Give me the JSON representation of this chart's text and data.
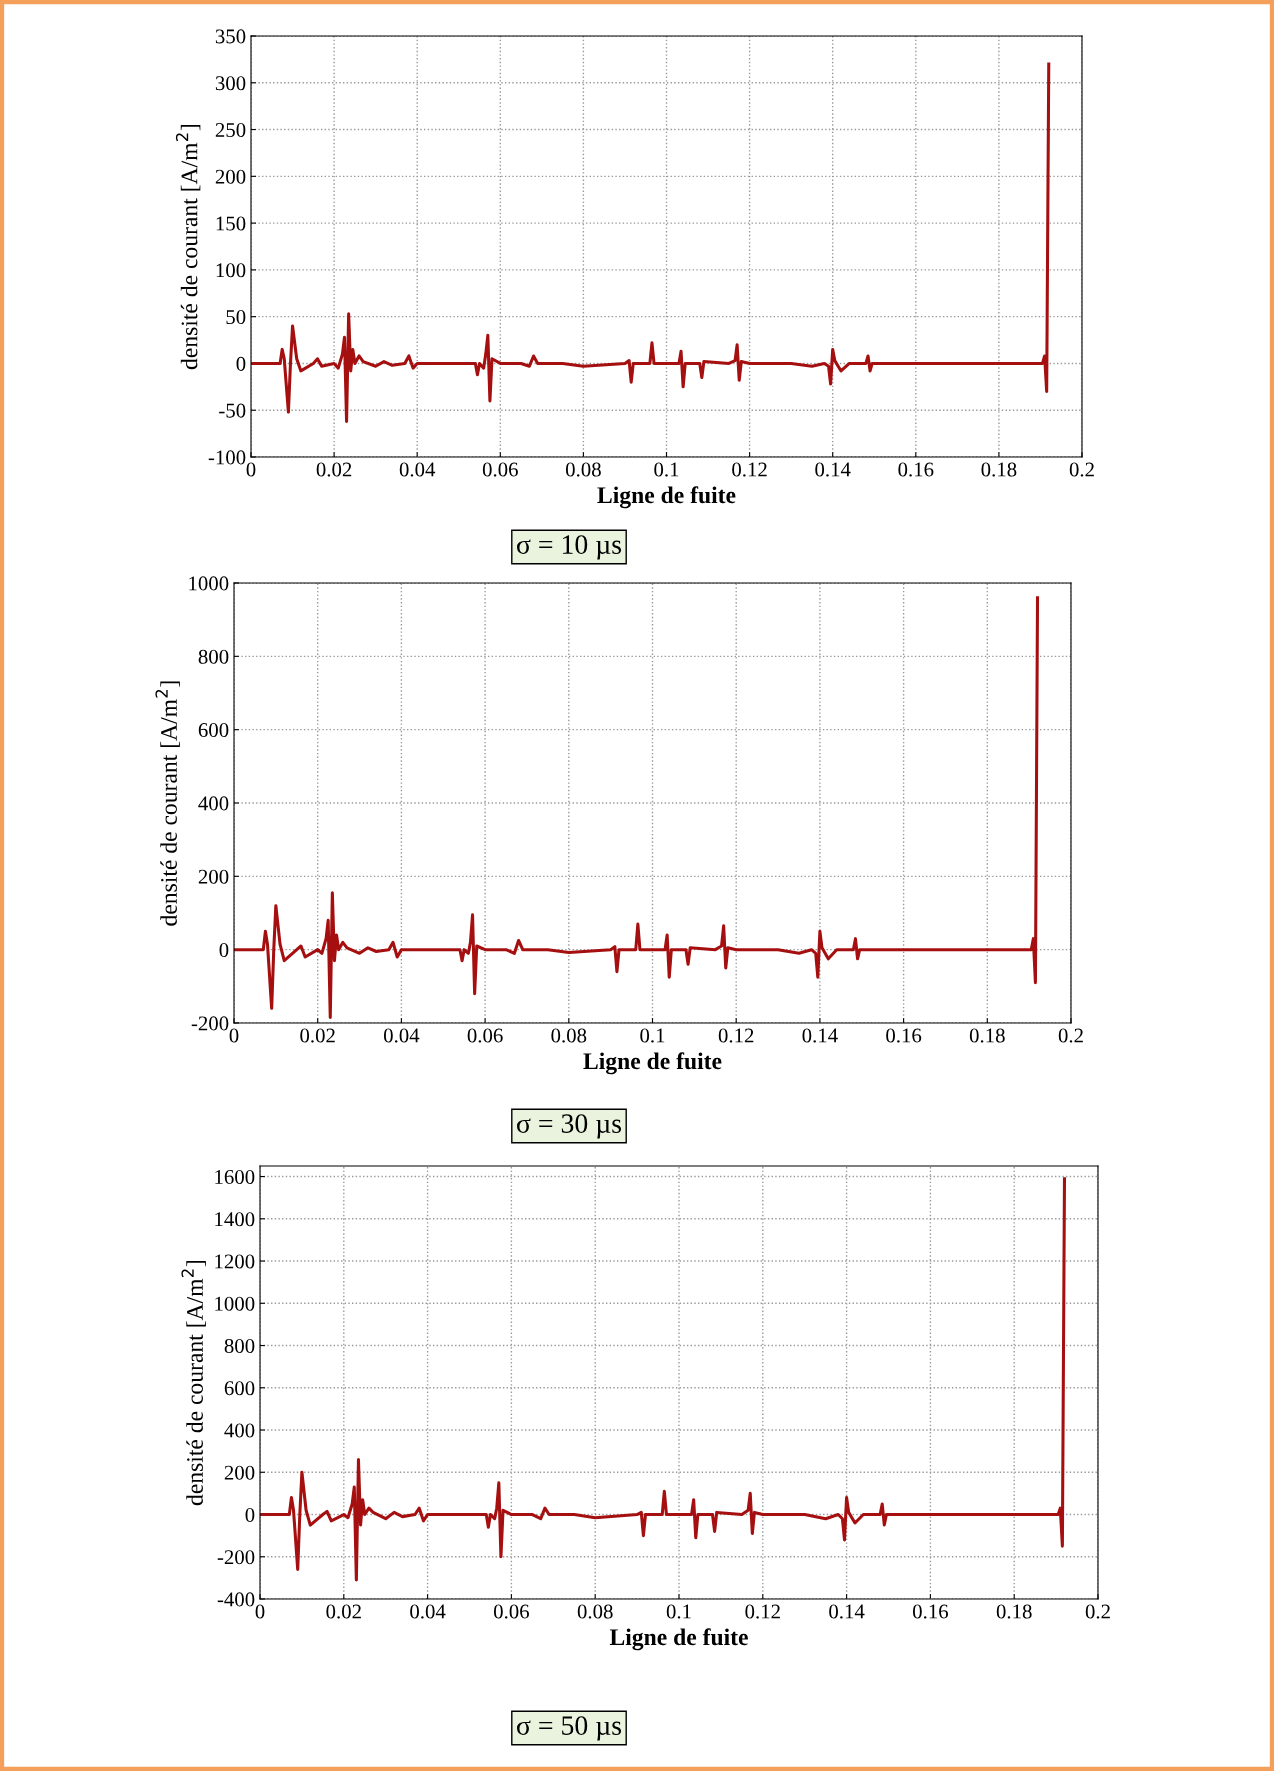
{
  "chart_data": [
    {
      "type": "line",
      "xlabel": "Ligne de fuite",
      "ylabel": "densité de courant [A/m$^{2}$]",
      "annotations": [
        "σ = 10 µs"
      ],
      "grid": true,
      "line_style": "solid",
      "marker": "none",
      "xlim": [
        0,
        0.2
      ],
      "xticks": [
        0,
        0.02,
        0.04,
        0.06,
        0.08,
        0.1,
        0.12,
        0.14,
        0.16,
        0.18,
        0.2
      ],
      "ylim": [
        -100,
        350
      ],
      "yticks": [
        -100,
        -50,
        0,
        50,
        100,
        150,
        200,
        250,
        300,
        350
      ],
      "series": [
        {
          "color": "#a50f0f",
          "x": [
            0,
            0.007,
            0.0075,
            0.008,
            0.009,
            0.0095,
            0.01,
            0.011,
            0.012,
            0.015,
            0.016,
            0.017,
            0.02,
            0.021,
            0.022,
            0.0225,
            0.023,
            0.0235,
            0.024,
            0.0245,
            0.025,
            0.026,
            0.027,
            0.03,
            0.032,
            0.034,
            0.037,
            0.038,
            0.039,
            0.04,
            0.05,
            0.054,
            0.0545,
            0.055,
            0.056,
            0.0565,
            0.057,
            0.0575,
            0.058,
            0.06,
            0.065,
            0.067,
            0.068,
            0.069,
            0.075,
            0.08,
            0.09,
            0.091,
            0.0915,
            0.092,
            0.096,
            0.0965,
            0.097,
            0.098,
            0.103,
            0.1035,
            0.104,
            0.1045,
            0.105,
            0.108,
            0.1085,
            0.109,
            0.115,
            0.1165,
            0.117,
            0.1175,
            0.118,
            0.12,
            0.13,
            0.135,
            0.138,
            0.139,
            0.1395,
            0.14,
            0.1405,
            0.142,
            0.144,
            0.146,
            0.148,
            0.1485,
            0.149,
            0.1495,
            0.15,
            0.152,
            0.19,
            0.1905,
            0.191,
            0.1915,
            0.192
          ],
          "values": [
            0,
            0,
            15,
            5,
            -52,
            0,
            40,
            5,
            -8,
            0,
            5,
            -3,
            0,
            -5,
            10,
            28,
            -62,
            53,
            -8,
            15,
            0,
            8,
            2,
            -3,
            2,
            -2,
            0,
            8,
            -5,
            0,
            0,
            0,
            -12,
            0,
            -5,
            10,
            30,
            -40,
            5,
            0,
            0,
            -3,
            8,
            0,
            0,
            -3,
            0,
            3,
            -20,
            0,
            0,
            22,
            0,
            0,
            0,
            13,
            -25,
            0,
            0,
            0,
            -15,
            2,
            0,
            3,
            20,
            -18,
            2,
            0,
            0,
            -3,
            0,
            -3,
            -22,
            15,
            3,
            -8,
            0,
            0,
            0,
            8,
            -8,
            0,
            0,
            0,
            0,
            0,
            8,
            -30,
            320
          ]
        }
      ]
    },
    {
      "type": "line",
      "xlabel": "Ligne de fuite",
      "ylabel": "densité de courant [A/m$^{2}$]",
      "annotations": [
        "σ = 30 µs"
      ],
      "grid": true,
      "line_style": "solid",
      "marker": "none",
      "xlim": [
        0,
        0.2
      ],
      "xticks": [
        0,
        0.02,
        0.04,
        0.06,
        0.08,
        0.1,
        0.12,
        0.14,
        0.16,
        0.18,
        0.2
      ],
      "ylim": [
        -200,
        1000
      ],
      "yticks": [
        -200,
        0,
        200,
        400,
        600,
        800,
        1000
      ],
      "series": [
        {
          "color": "#a50f0f",
          "x": [
            0,
            0.007,
            0.0075,
            0.008,
            0.009,
            0.0095,
            0.01,
            0.011,
            0.012,
            0.015,
            0.016,
            0.017,
            0.02,
            0.021,
            0.022,
            0.0225,
            0.023,
            0.0235,
            0.024,
            0.0245,
            0.025,
            0.026,
            0.027,
            0.03,
            0.032,
            0.034,
            0.037,
            0.038,
            0.039,
            0.04,
            0.05,
            0.054,
            0.0545,
            0.055,
            0.056,
            0.0565,
            0.057,
            0.0575,
            0.058,
            0.06,
            0.065,
            0.067,
            0.068,
            0.069,
            0.075,
            0.08,
            0.09,
            0.091,
            0.0915,
            0.092,
            0.096,
            0.0965,
            0.097,
            0.098,
            0.103,
            0.1035,
            0.104,
            0.1045,
            0.105,
            0.108,
            0.1085,
            0.109,
            0.115,
            0.1165,
            0.117,
            0.1175,
            0.118,
            0.12,
            0.13,
            0.135,
            0.138,
            0.139,
            0.1395,
            0.14,
            0.1405,
            0.142,
            0.144,
            0.146,
            0.148,
            0.1485,
            0.149,
            0.1495,
            0.15,
            0.152,
            0.19,
            0.1905,
            0.191,
            0.1915,
            0.192
          ],
          "values": [
            0,
            0,
            50,
            15,
            -160,
            0,
            120,
            15,
            -30,
            0,
            10,
            -20,
            0,
            -10,
            30,
            80,
            -185,
            155,
            -30,
            40,
            0,
            20,
            5,
            -10,
            5,
            -5,
            0,
            20,
            -20,
            0,
            0,
            0,
            -30,
            0,
            -10,
            20,
            95,
            -120,
            10,
            0,
            0,
            -10,
            25,
            0,
            0,
            -8,
            0,
            8,
            -60,
            0,
            0,
            70,
            0,
            0,
            0,
            40,
            -75,
            0,
            0,
            0,
            -40,
            5,
            0,
            10,
            65,
            -50,
            5,
            0,
            0,
            -10,
            0,
            -10,
            -75,
            50,
            5,
            -25,
            0,
            0,
            0,
            30,
            -25,
            0,
            0,
            0,
            0,
            0,
            30,
            -90,
            960
          ]
        }
      ]
    },
    {
      "type": "line",
      "xlabel": "Ligne de fuite",
      "ylabel": "densité de courant [A/m$^{2}$]",
      "annotations": [
        "σ = 50 µs"
      ],
      "grid": true,
      "line_style": "solid",
      "marker": "none",
      "xlim": [
        0,
        0.2
      ],
      "xticks": [
        0,
        0.02,
        0.04,
        0.06,
        0.08,
        0.1,
        0.12,
        0.14,
        0.16,
        0.18,
        0.2
      ],
      "ylim": [
        -400,
        1650
      ],
      "yticks": [
        -400,
        -200,
        0,
        200,
        400,
        600,
        800,
        1000,
        1200,
        1400,
        1600
      ],
      "series": [
        {
          "color": "#a50f0f",
          "x": [
            0,
            0.007,
            0.0075,
            0.008,
            0.009,
            0.0095,
            0.01,
            0.011,
            0.012,
            0.015,
            0.016,
            0.017,
            0.02,
            0.021,
            0.022,
            0.0225,
            0.023,
            0.0235,
            0.024,
            0.0245,
            0.025,
            0.026,
            0.027,
            0.03,
            0.032,
            0.034,
            0.037,
            0.038,
            0.039,
            0.04,
            0.05,
            0.054,
            0.0545,
            0.055,
            0.056,
            0.0565,
            0.057,
            0.0575,
            0.058,
            0.06,
            0.065,
            0.067,
            0.068,
            0.069,
            0.075,
            0.08,
            0.09,
            0.091,
            0.0915,
            0.092,
            0.096,
            0.0965,
            0.097,
            0.098,
            0.103,
            0.1035,
            0.104,
            0.1045,
            0.105,
            0.108,
            0.1085,
            0.109,
            0.115,
            0.1165,
            0.117,
            0.1175,
            0.118,
            0.12,
            0.13,
            0.135,
            0.138,
            0.139,
            0.1395,
            0.14,
            0.1405,
            0.142,
            0.144,
            0.146,
            0.148,
            0.1485,
            0.149,
            0.1495,
            0.15,
            0.152,
            0.19,
            0.1905,
            0.191,
            0.1915,
            0.192
          ],
          "values": [
            0,
            0,
            80,
            20,
            -260,
            0,
            200,
            20,
            -50,
            0,
            15,
            -30,
            0,
            -15,
            50,
            130,
            -310,
            260,
            -50,
            70,
            0,
            30,
            10,
            -20,
            10,
            -10,
            0,
            30,
            -30,
            0,
            0,
            0,
            -60,
            0,
            -20,
            30,
            150,
            -200,
            20,
            0,
            0,
            -20,
            30,
            0,
            0,
            -15,
            0,
            10,
            -100,
            0,
            0,
            110,
            0,
            0,
            0,
            70,
            -110,
            0,
            0,
            0,
            -80,
            10,
            0,
            20,
            100,
            -90,
            10,
            0,
            0,
            -20,
            0,
            -20,
            -120,
            80,
            10,
            -40,
            0,
            0,
            0,
            50,
            -50,
            0,
            0,
            0,
            0,
            0,
            30,
            -150,
            1590
          ]
        }
      ]
    }
  ]
}
